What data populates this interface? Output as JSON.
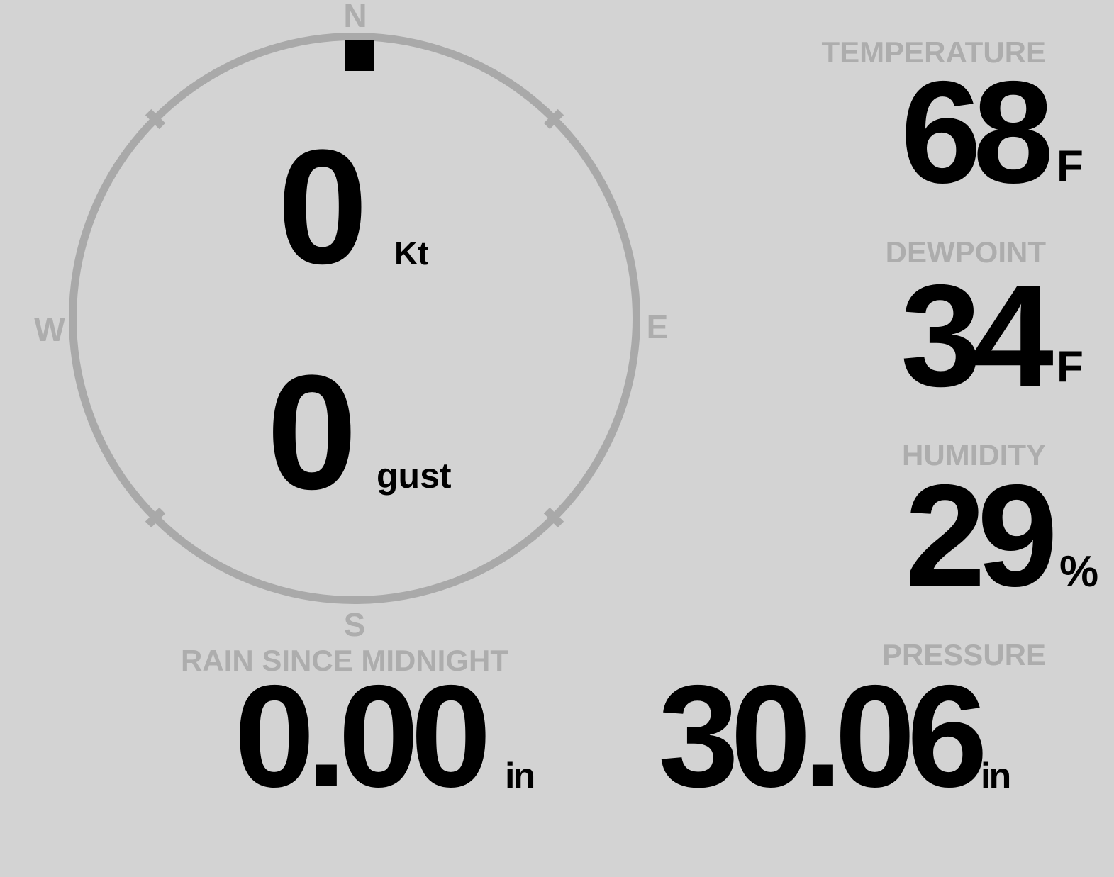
{
  "theme": {
    "background_color": "#d3d3d3",
    "label_color": "#adadad",
    "ring_color": "#a9a9a9",
    "value_color": "#000000",
    "wind_marker_color": "#000000"
  },
  "compass": {
    "cardinals": {
      "north": "N",
      "east": "E",
      "south": "S",
      "west": "W"
    },
    "wind_direction": "N",
    "speed": {
      "value": "0",
      "unit": "Kt"
    },
    "gust": {
      "value": "0",
      "unit": "gust"
    }
  },
  "metrics": {
    "temperature": {
      "label": "TEMPERATURE",
      "value": "68",
      "unit": "F"
    },
    "dewpoint": {
      "label": "DEWPOINT",
      "value": "34",
      "unit": "F"
    },
    "humidity": {
      "label": "HUMIDITY",
      "value": "29",
      "unit": "%"
    },
    "rain_since_midnight": {
      "label": "RAIN SINCE MIDNIGHT",
      "value": "0.00",
      "unit": "in"
    },
    "pressure": {
      "label": "PRESSURE",
      "value": "30.06",
      "unit": "in"
    }
  }
}
